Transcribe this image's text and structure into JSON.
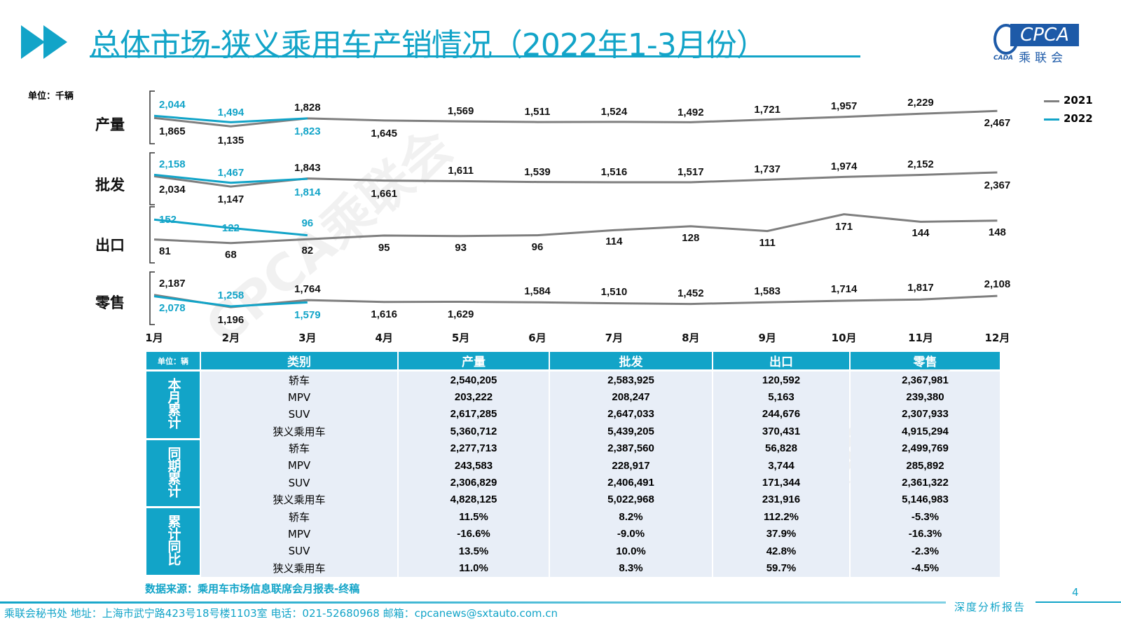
{
  "header": {
    "title": "总体市场-狭义乘用车产销情况（2022年1-3月份）",
    "logo_text": "CPCA",
    "logo_sub": "乘联会",
    "logo_mark": "CADA"
  },
  "colors": {
    "accent": "#12a4c8",
    "series_2021": "#7f7f7f",
    "series_2022": "#12a4c8"
  },
  "watermark": "CPCA乘联会",
  "chart_data": {
    "type": "line",
    "unit_label": "单位：千辆",
    "categories": [
      "1月",
      "2月",
      "3月",
      "4月",
      "5月",
      "6月",
      "7月",
      "8月",
      "9月",
      "10月",
      "11月",
      "12月"
    ],
    "legend": [
      "2021",
      "2022"
    ],
    "legend_position": "top-right",
    "panels": [
      {
        "label": "产量",
        "series": [
          {
            "name": "2021",
            "values": [
              1865,
              1135,
              1828,
              1645,
              1569,
              1511,
              1524,
              1492,
              1721,
              1957,
              2229,
              2467
            ]
          },
          {
            "name": "2022",
            "values": [
              2044,
              1494,
              1823
            ]
          }
        ]
      },
      {
        "label": "批发",
        "series": [
          {
            "name": "2021",
            "values": [
              2034,
              1147,
              1843,
              1661,
              1611,
              1539,
              1516,
              1517,
              1737,
              1974,
              2152,
              2367
            ]
          },
          {
            "name": "2022",
            "values": [
              2158,
              1467,
              1814
            ]
          }
        ]
      },
      {
        "label": "出口",
        "series": [
          {
            "name": "2021",
            "values": [
              81,
              68,
              82,
              95,
              93,
              96,
              114,
              128,
              111,
              171,
              144,
              148
            ]
          },
          {
            "name": "2022",
            "values": [
              152,
              122,
              96
            ]
          }
        ]
      },
      {
        "label": "零售",
        "series": [
          {
            "name": "2021",
            "values": [
              2187,
              1196,
              1764,
              1616,
              1629,
              1584,
              1510,
              1452,
              1583,
              1714,
              1817,
              2108
            ]
          },
          {
            "name": "2022",
            "values": [
              2078,
              1258,
              1579
            ]
          }
        ]
      }
    ]
  },
  "table": {
    "unit": "单位：辆",
    "headers": [
      "类别",
      "产量",
      "批发",
      "出口",
      "零售"
    ],
    "groups": [
      {
        "label": "本月累计",
        "rows": [
          [
            "轿车",
            "2,540,205",
            "2,583,925",
            "120,592",
            "2,367,981"
          ],
          [
            "MPV",
            "203,222",
            "208,247",
            "5,163",
            "239,380"
          ],
          [
            "SUV",
            "2,617,285",
            "2,647,033",
            "244,676",
            "2,307,933"
          ],
          [
            "狭义乘用车",
            "5,360,712",
            "5,439,205",
            "370,431",
            "4,915,294"
          ]
        ]
      },
      {
        "label": "同期累计",
        "rows": [
          [
            "轿车",
            "2,277,713",
            "2,387,560",
            "56,828",
            "2,499,769"
          ],
          [
            "MPV",
            "243,583",
            "228,917",
            "3,744",
            "285,892"
          ],
          [
            "SUV",
            "2,306,829",
            "2,406,491",
            "171,344",
            "2,361,322"
          ],
          [
            "狭义乘用车",
            "4,828,125",
            "5,022,968",
            "231,916",
            "5,146,983"
          ]
        ]
      },
      {
        "label": "累计同比",
        "rows": [
          [
            "轿车",
            "11.5%",
            "8.2%",
            "112.2%",
            "-5.3%"
          ],
          [
            "MPV",
            "-16.6%",
            "-9.0%",
            "37.9%",
            "-16.3%"
          ],
          [
            "SUV",
            "13.5%",
            "10.0%",
            "42.8%",
            "-2.3%"
          ],
          [
            "狭义乘用车",
            "11.0%",
            "8.3%",
            "59.7%",
            "-4.5%"
          ]
        ]
      }
    ]
  },
  "footer": {
    "source": "数据来源：乘用车市场信息联席会月报表-终稿",
    "page_number": "4",
    "contact": "乘联会秘书处   地址：上海市武宁路423号18号楼1103室  电话：021-52680968   邮箱：cpcanews@sxtauto.com.cn",
    "report_label": "深度分析报告"
  }
}
